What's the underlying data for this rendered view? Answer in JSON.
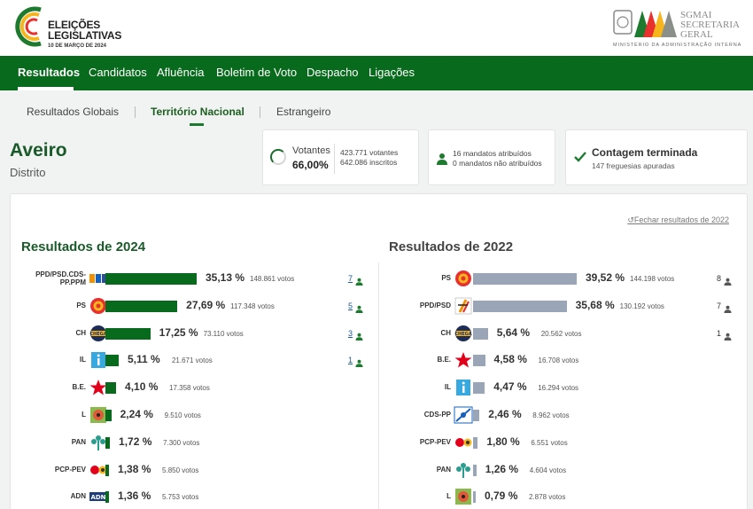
{
  "header": {
    "logo_title_line1": "ELEIÇÕES",
    "logo_title_line2": "LEGISLATIVAS",
    "logo_date": "10 DE MARÇO DE 2024",
    "sgmai_line1": "SGMAI",
    "sgmai_line2": "SECRETARIA",
    "sgmai_line3": "GERAL",
    "ministry": "MINISTÉRIO DA ADMINISTRAÇÃO INTERNA"
  },
  "mainnav": [
    "Resultados",
    "Candidatos",
    "Afluência",
    "Boletim de Voto",
    "Despacho",
    "Ligações"
  ],
  "subnav": [
    "Resultados Globais",
    "Território Nacional",
    "Estrangeiro"
  ],
  "district": {
    "name": "Aveiro",
    "type": "Distrito"
  },
  "turnout": {
    "label": "Votantes",
    "pct": "66,00%",
    "votes": "423.771 votantes",
    "registered": "642.086 inscritos"
  },
  "mandates": {
    "assigned": "16 mandatos atribuídos",
    "unassigned": "0 mandatos não atribuídos"
  },
  "count": {
    "title": "Contagem terminada",
    "subtitle": "147 freguesias apuradas"
  },
  "close_link": "Fechar resultados de 2022",
  "results_2024": {
    "title": "Resultados de 2024",
    "rows": [
      {
        "party": "PPD/PSD.CDS-PP.PPM",
        "pct": "35,13 %",
        "value": 35.13,
        "votes": "148.861 votos",
        "seats": "7",
        "logo": "ad-logo"
      },
      {
        "party": "PS",
        "pct": "27,69 %",
        "value": 27.69,
        "votes": "117.348 votos",
        "seats": "5",
        "logo": "ps-logo"
      },
      {
        "party": "CH",
        "pct": "17,25 %",
        "value": 17.25,
        "votes": "73.110 votos",
        "seats": "3",
        "logo": "ch-logo"
      },
      {
        "party": "IL",
        "pct": "5,11 %",
        "value": 5.11,
        "votes": "21.671 votos",
        "seats": "1",
        "logo": "il-logo"
      },
      {
        "party": "B.E.",
        "pct": "4,10 %",
        "value": 4.1,
        "votes": "17.358 votos",
        "seats": "",
        "logo": "be-logo"
      },
      {
        "party": "L",
        "pct": "2,24 %",
        "value": 2.24,
        "votes": "9.510 votos",
        "seats": "",
        "logo": "livre-logo"
      },
      {
        "party": "PAN",
        "pct": "1,72 %",
        "value": 1.72,
        "votes": "7.300 votos",
        "seats": "",
        "logo": "pan-logo"
      },
      {
        "party": "PCP-PEV",
        "pct": "1,38 %",
        "value": 1.38,
        "votes": "5.850 votos",
        "seats": "",
        "logo": "cdu-logo"
      },
      {
        "party": "ADN",
        "pct": "1,36 %",
        "value": 1.36,
        "votes": "5.753 votos",
        "seats": "",
        "logo": "adn-logo"
      }
    ]
  },
  "results_2022": {
    "title": "Resultados de 2022",
    "rows": [
      {
        "party": "PS",
        "pct": "39,52 %",
        "value": 39.52,
        "votes": "144.198 votos",
        "seats": "8",
        "logo": "ps-logo"
      },
      {
        "party": "PPD/PSD",
        "pct": "35,68 %",
        "value": 35.68,
        "votes": "130.192 votos",
        "seats": "7",
        "logo": "psd-logo"
      },
      {
        "party": "CH",
        "pct": "5,64 %",
        "value": 5.64,
        "votes": "20.562 votos",
        "seats": "1",
        "logo": "ch-logo"
      },
      {
        "party": "B.E.",
        "pct": "4,58 %",
        "value": 4.58,
        "votes": "16.708 votos",
        "seats": "",
        "logo": "be-logo"
      },
      {
        "party": "IL",
        "pct": "4,47 %",
        "value": 4.47,
        "votes": "16.294 votos",
        "seats": "",
        "logo": "il-logo"
      },
      {
        "party": "CDS-PP",
        "pct": "2,46 %",
        "value": 2.46,
        "votes": "8.962 votos",
        "seats": "",
        "logo": "cds-logo"
      },
      {
        "party": "PCP-PEV",
        "pct": "1,80 %",
        "value": 1.8,
        "votes": "6.551 votos",
        "seats": "",
        "logo": "cdu-logo"
      },
      {
        "party": "PAN",
        "pct": "1,26 %",
        "value": 1.26,
        "votes": "4.604 votos",
        "seats": "",
        "logo": "pan-logo"
      },
      {
        "party": "L",
        "pct": "0,79 %",
        "value": 0.79,
        "votes": "2.878 votos",
        "seats": "",
        "logo": "livre-logo"
      }
    ]
  },
  "colors": {
    "green": "#086a1c",
    "bar2024": "#086a1c",
    "bar2022": "#9aa5b8",
    "accent_red": "#e8302e",
    "accent_yellow": "#f6b51d"
  }
}
